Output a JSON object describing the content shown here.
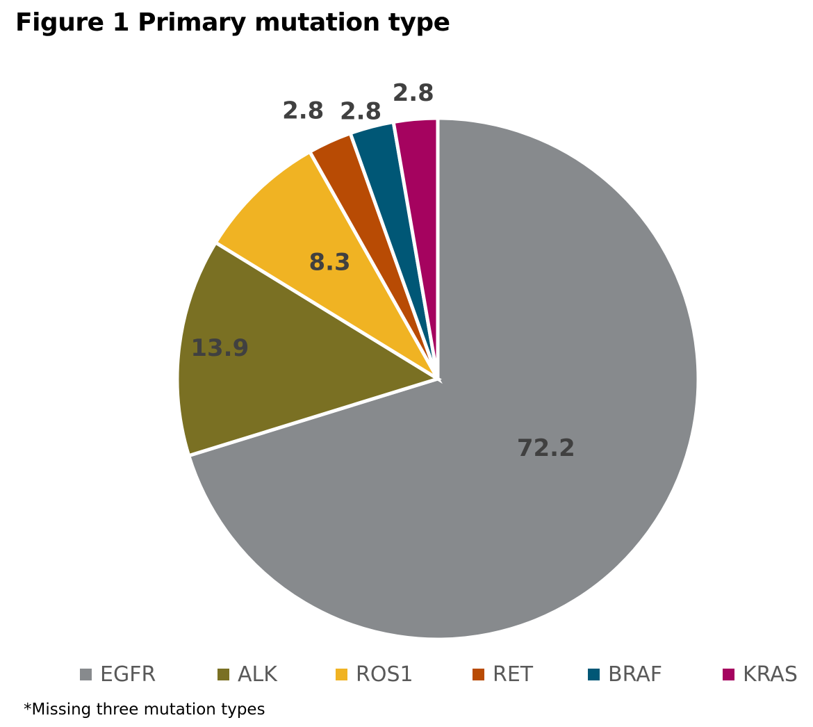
{
  "chart_data": {
    "type": "pie",
    "title": "Figure 1 Primary mutation type",
    "categories": [
      "EGFR",
      "ALK",
      "ROS1",
      "RET",
      "BRAF",
      "KRAS"
    ],
    "values": [
      72.2,
      13.9,
      8.3,
      2.8,
      2.8,
      2.8
    ],
    "value_labels": [
      "72.2",
      "13.9",
      "8.3",
      "2.8",
      "2.8",
      "2.8"
    ],
    "colors": [
      "#878A8D",
      "#7A7023",
      "#F0B323",
      "#B84B04",
      "#005776",
      "#A5035F"
    ],
    "start": "12 o'clock",
    "direction": "clockwise",
    "legend_position": "bottom",
    "footnote": "*Missing three mutation types"
  }
}
